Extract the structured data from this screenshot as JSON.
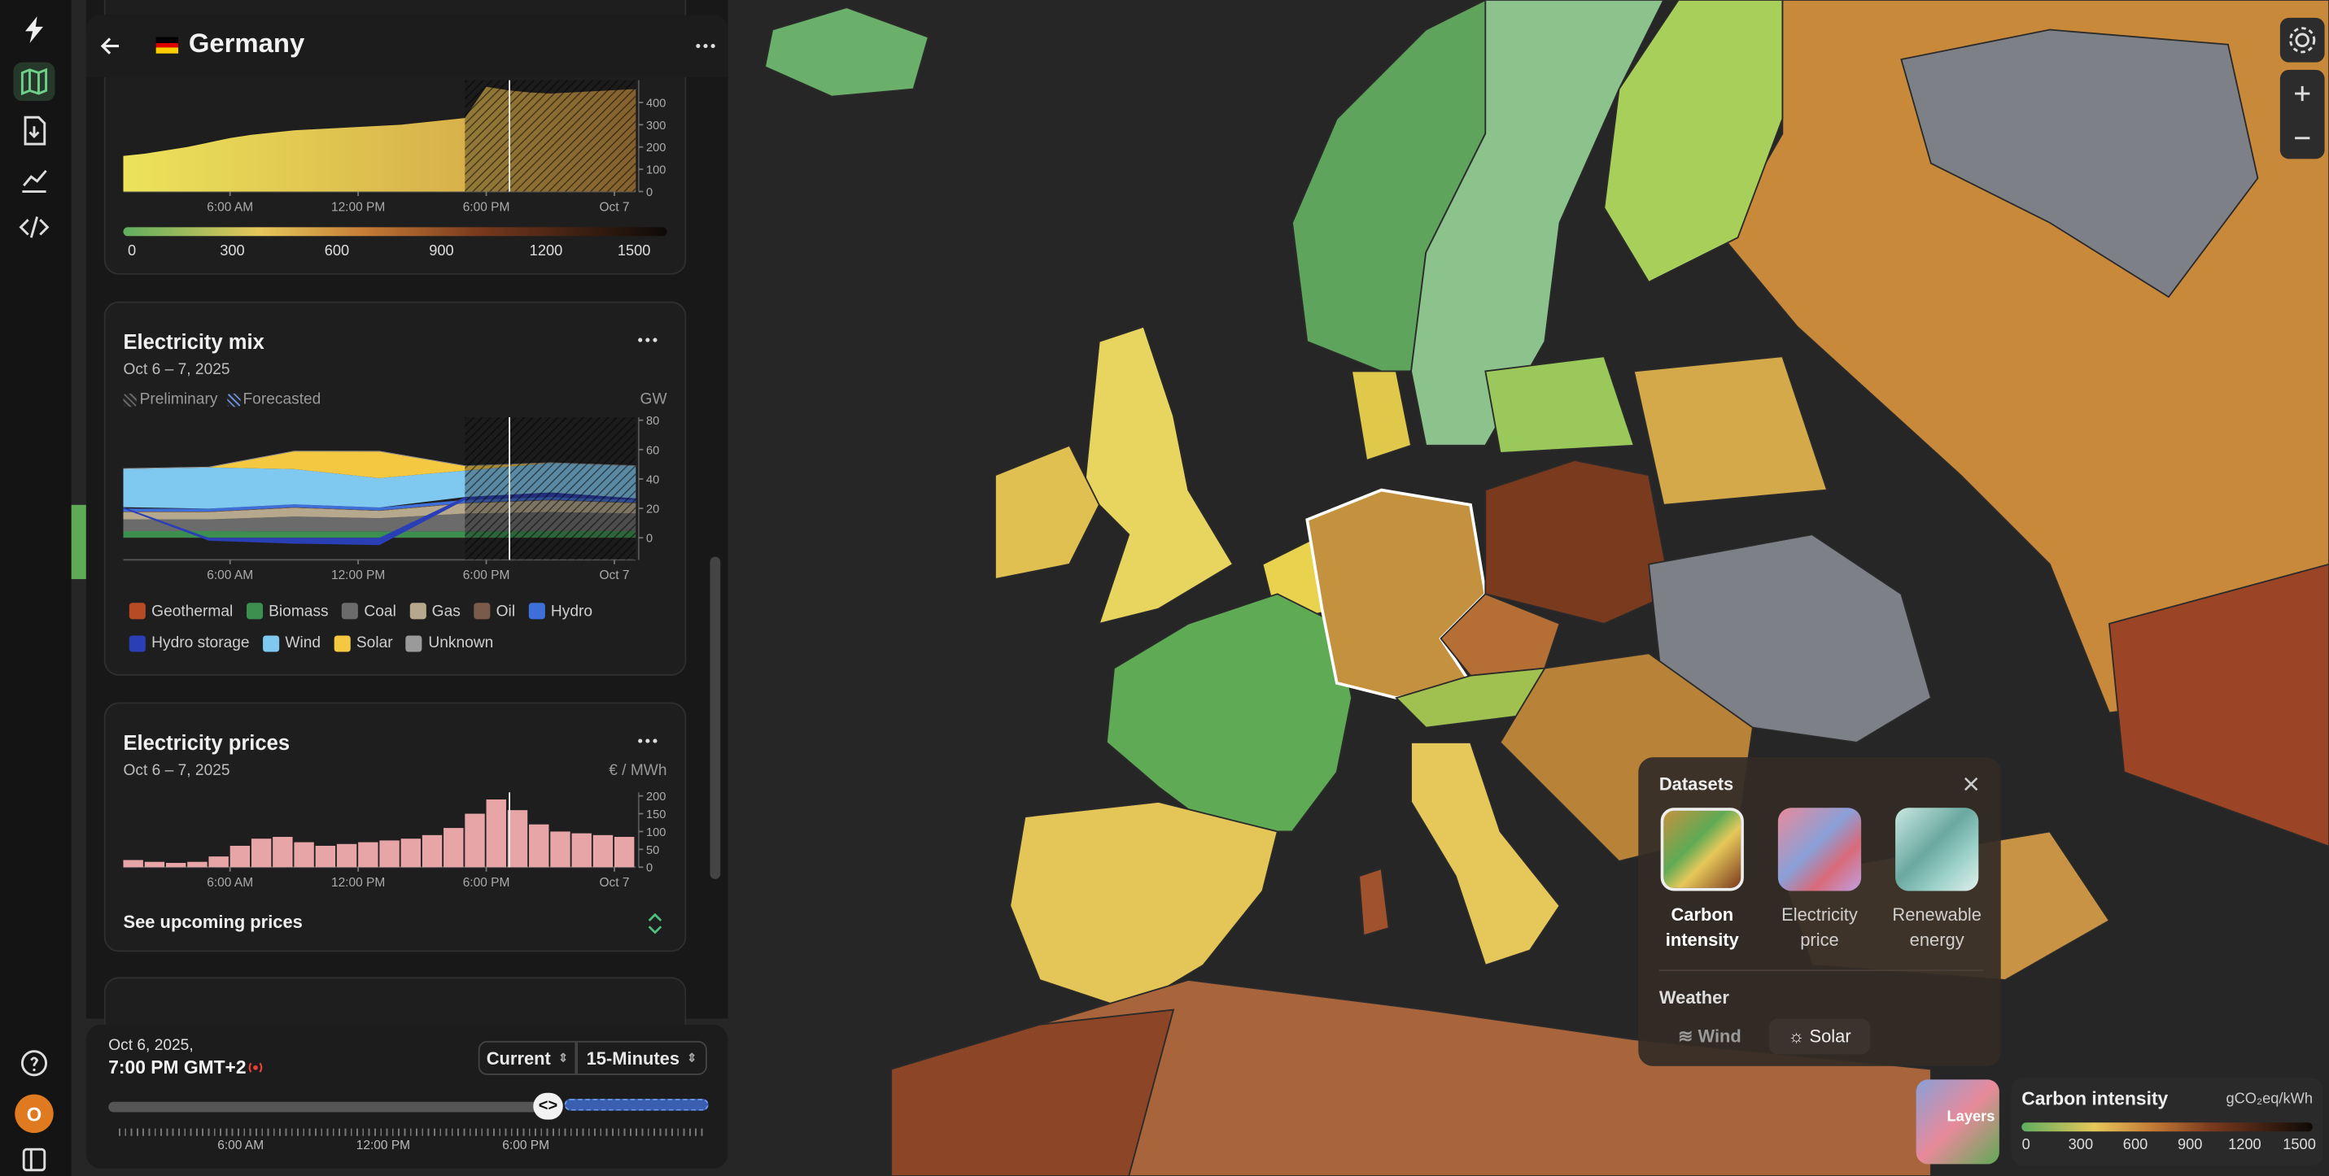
{
  "panel": {
    "country": "Germany",
    "carbon": {
      "type": "area",
      "x": [
        1,
        2,
        3,
        4,
        5,
        6,
        7,
        8,
        9,
        10,
        11,
        12,
        13,
        14,
        15,
        16,
        17,
        18,
        19,
        20,
        21,
        22,
        23,
        24,
        25
      ],
      "values": [
        160,
        170,
        185,
        200,
        220,
        240,
        255,
        265,
        275,
        280,
        285,
        290,
        295,
        300,
        310,
        320,
        330,
        470,
        455,
        445,
        440,
        445,
        450,
        455,
        460
      ],
      "xlim": [
        1,
        25
      ],
      "xticks": [
        {
          "value": 6,
          "label": "6:00 AM"
        },
        {
          "value": 12,
          "label": "12:00 PM"
        },
        {
          "value": 18,
          "label": "6:00 PM"
        },
        {
          "value": 24,
          "label": "Oct 7"
        }
      ],
      "ylim": [
        0,
        500
      ],
      "yticks": [
        0,
        100,
        200,
        300,
        400
      ],
      "scale_ticks": [
        0,
        300,
        600,
        900,
        1200,
        1500
      ]
    },
    "mix": {
      "type": "stacked-area",
      "title": "Electricity mix",
      "subtitle": "Oct 6 – 7, 2025",
      "notes": [
        "Preliminary",
        "Forecasted"
      ],
      "unit": "GW",
      "x": [
        1,
        5,
        9,
        13,
        17,
        21,
        25
      ],
      "series": [
        {
          "name": "Geothermal",
          "color": "#b84a24",
          "values": [
            0.02,
            0.02,
            0.02,
            0.02,
            0.02,
            0.02,
            0.02
          ]
        },
        {
          "name": "Biomass",
          "color": "#3c8f4e",
          "values": [
            4.5,
            4.5,
            4.4,
            4.3,
            4.4,
            4.5,
            4.5
          ]
        },
        {
          "name": "Coal",
          "color": "#6b6b6b",
          "values": [
            8,
            8,
            10,
            9,
            12,
            13,
            12
          ]
        },
        {
          "name": "Gas",
          "color": "#b5a88c",
          "values": [
            5,
            5,
            6,
            5,
            7,
            8,
            7
          ]
        },
        {
          "name": "Oil",
          "color": "#7a5a4a",
          "values": [
            0.3,
            0.3,
            0.3,
            0.3,
            0.3,
            0.3,
            0.3
          ]
        },
        {
          "name": "Hydro",
          "color": "#3e6fd8",
          "values": [
            2,
            2,
            2,
            2,
            2,
            2,
            2
          ]
        },
        {
          "name": "Hydro storage",
          "color": "#2a3fb5",
          "values": [
            1,
            -2,
            -4,
            -5,
            2,
            3,
            1
          ]
        },
        {
          "name": "Wind",
          "color": "#7fc8f0",
          "values": [
            26,
            28,
            24,
            20,
            18,
            20,
            22
          ]
        },
        {
          "name": "Solar",
          "color": "#f5c842",
          "values": [
            0,
            0,
            12,
            18,
            3,
            0,
            0
          ]
        },
        {
          "name": "Unknown",
          "color": "#9a9a9a",
          "values": [
            0.5,
            0.5,
            0.5,
            0.5,
            0.5,
            0.5,
            0.5
          ]
        }
      ],
      "xlim": [
        1,
        25
      ],
      "xticks": [
        {
          "value": 6,
          "label": "6:00 AM"
        },
        {
          "value": 12,
          "label": "12:00 PM"
        },
        {
          "value": 18,
          "label": "6:00 PM"
        },
        {
          "value": 24,
          "label": "Oct 7"
        }
      ],
      "ylim": [
        -15,
        82
      ],
      "yticks": [
        0,
        20,
        40,
        60,
        80
      ]
    },
    "prices": {
      "type": "bar",
      "title": "Electricity prices",
      "subtitle": "Oct 6 – 7, 2025",
      "unit": "€ / MWh",
      "x": [
        1,
        2,
        3,
        4,
        5,
        6,
        7,
        8,
        9,
        10,
        11,
        12,
        13,
        14,
        15,
        16,
        17,
        18,
        19,
        20,
        21,
        22,
        23,
        24
      ],
      "values": [
        20,
        15,
        12,
        15,
        30,
        60,
        80,
        85,
        70,
        60,
        65,
        70,
        75,
        80,
        90,
        110,
        150,
        190,
        160,
        120,
        100,
        95,
        90,
        85
      ],
      "color": "#e8a5a8",
      "xlim": [
        1,
        25
      ],
      "xticks": [
        {
          "value": 6,
          "label": "6:00 AM"
        },
        {
          "value": 12,
          "label": "12:00 PM"
        },
        {
          "value": 18,
          "label": "6:00 PM"
        },
        {
          "value": 24,
          "label": "Oct 7"
        }
      ],
      "ylim": [
        0,
        210
      ],
      "yticks": [
        0,
        50,
        100,
        150,
        200
      ],
      "link": "See upcoming prices"
    }
  },
  "timeline": {
    "date": "Oct 6, 2025,",
    "time": "7:00 PM GMT+2",
    "mode": "Current",
    "resolution": "15-Minutes",
    "ticks": [
      "6:00 AM",
      "12:00 PM",
      "6:00 PM"
    ]
  },
  "datasets": {
    "title": "Datasets",
    "options": [
      "Carbon intensity",
      "Electricity price",
      "Renewable energy"
    ],
    "weather_title": "Weather",
    "weather": [
      "Wind",
      "Solar"
    ]
  },
  "layers": "Layers",
  "legend": {
    "title": "Carbon intensity",
    "unit": "gCO₂eq/kWh",
    "ticks": [
      0,
      300,
      600,
      900,
      1200,
      1500
    ]
  },
  "user_initial": "O"
}
